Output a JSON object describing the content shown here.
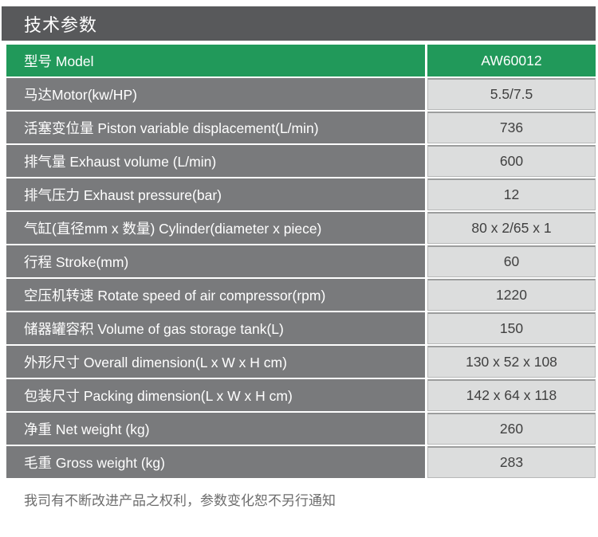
{
  "header": {
    "title": "技术参数"
  },
  "table": {
    "header": {
      "label": "型号 Model",
      "value": "AW60012"
    },
    "rows": [
      {
        "label": "马达Motor(kw/HP)",
        "value": "5.5/7.5"
      },
      {
        "label": "活塞变位量 Piston variable displacement(L/min)",
        "value": "736"
      },
      {
        "label": "排气量 Exhaust volume (L/min)",
        "value": "600"
      },
      {
        "label": "排气压力 Exhaust pressure(bar)",
        "value": "12"
      },
      {
        "label": "气缸(直径mm x 数量) Cylinder(diameter x piece)",
        "value": "80 x 2/65 x 1"
      },
      {
        "label": "行程 Stroke(mm)",
        "value": "60"
      },
      {
        "label": "空压机转速 Rotate speed of air compressor(rpm)",
        "value": "1220"
      },
      {
        "label": "储器罐容积 Volume of gas storage tank(L)",
        "value": "150"
      },
      {
        "label": "外形尺寸 Overall dimension(L x W x H cm)",
        "value": "130 x 52 x 108"
      },
      {
        "label": "包装尺寸 Packing dimension(L x W x H cm)",
        "value": "142 x 64 x 118"
      },
      {
        "label": "净重 Net weight (kg)",
        "value": "260"
      },
      {
        "label": "毛重 Gross weight (kg)",
        "value": "283"
      }
    ]
  },
  "footnote": {
    "text": "我司有不断改进产品之权利，参数变化恕不另行通知"
  },
  "colors": {
    "title_bar_bg": "#58595b",
    "accent_green": "#21995a",
    "label_cell_bg": "#797a7c",
    "value_cell_bg": "#dcdddd",
    "value_cell_border_top": "#9c9d9d",
    "value_cell_border_side": "#b7b8b8",
    "value_text": "#404040",
    "footnote_text": "#6d6d6d"
  }
}
